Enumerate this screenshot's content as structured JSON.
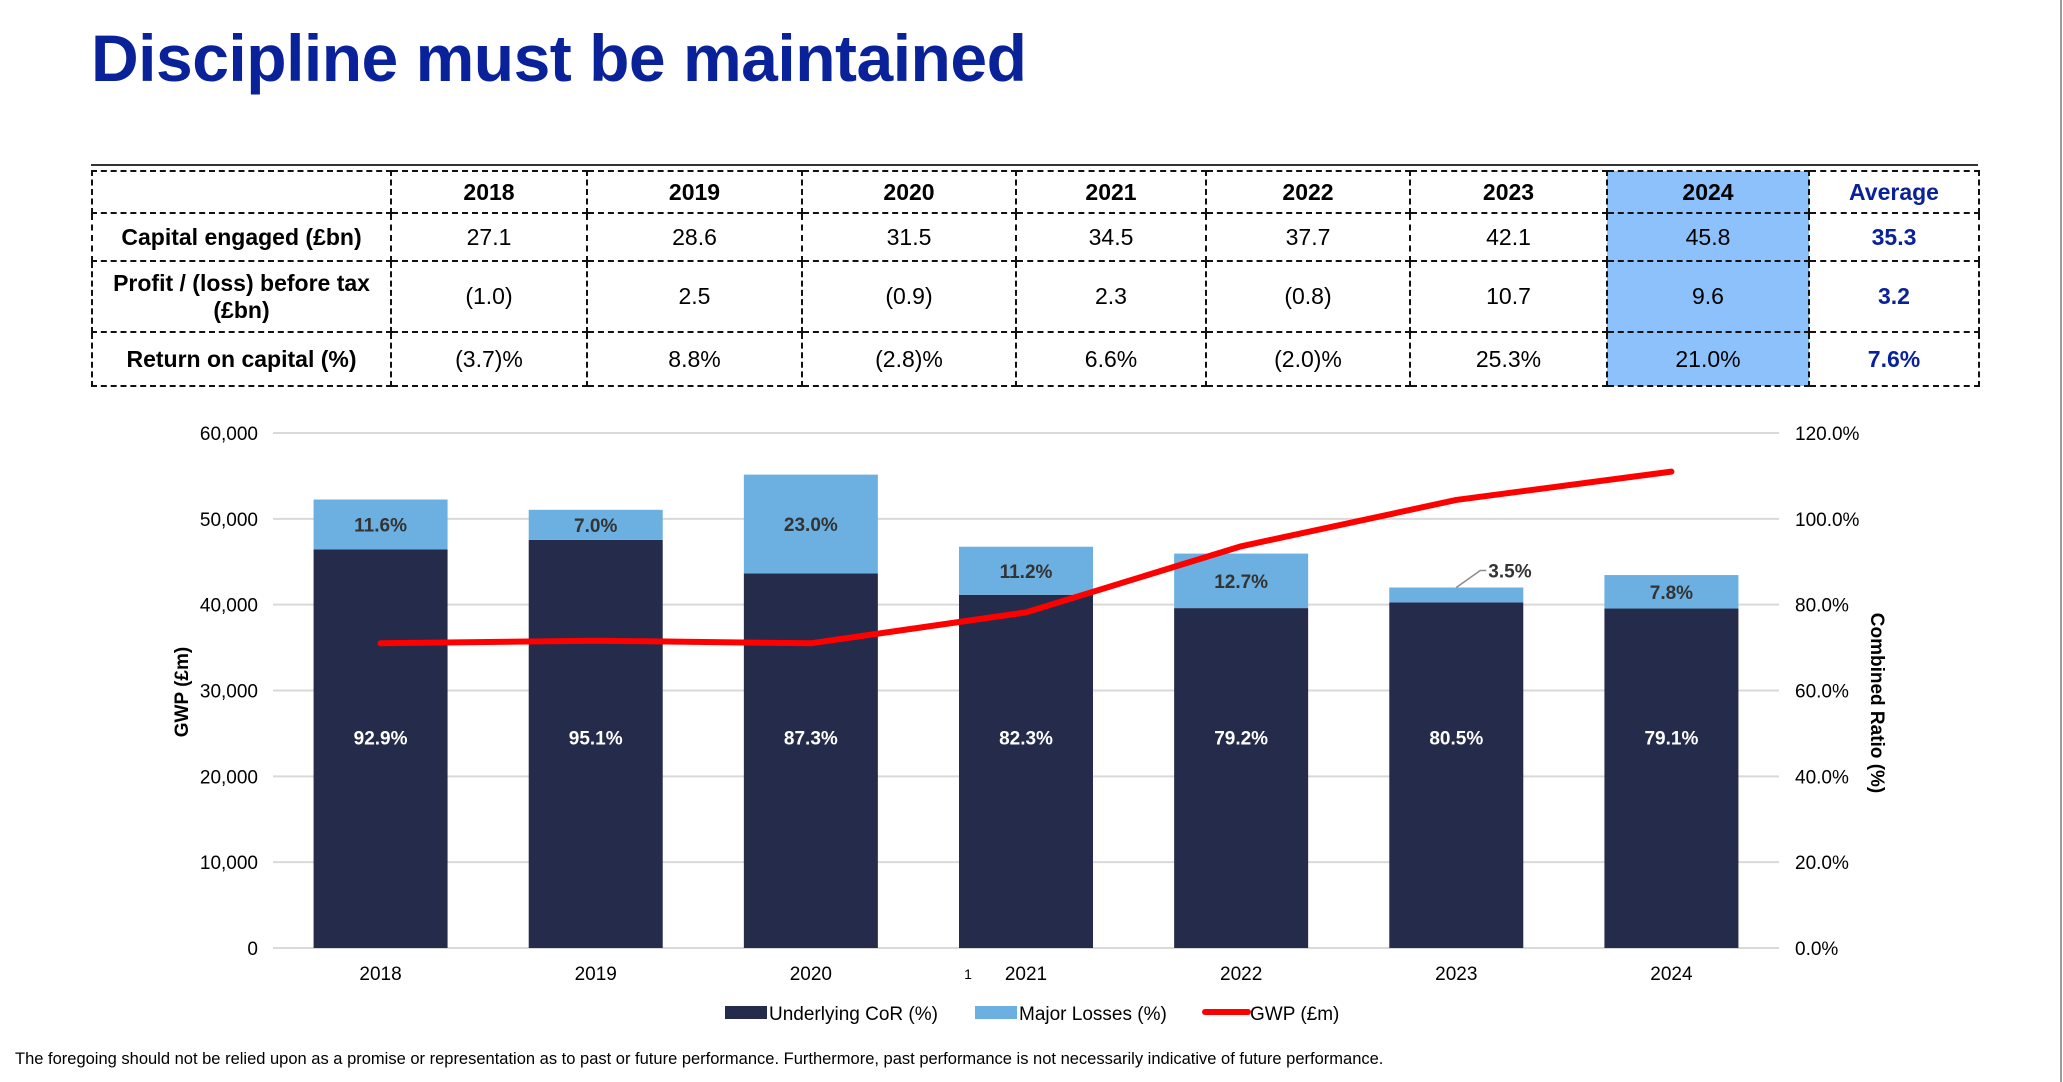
{
  "title": "Discipline must be maintained",
  "table": {
    "columns": [
      "2018",
      "2019",
      "2020",
      "2021",
      "2022",
      "2023",
      "2024",
      "Average"
    ],
    "highlight_column": "2024",
    "rows": [
      {
        "label": "Capital engaged (£bn)",
        "values": [
          "27.1",
          "28.6",
          "31.5",
          "34.5",
          "37.7",
          "42.1",
          "45.8",
          "35.3"
        ]
      },
      {
        "label": "Profit / (loss) before tax (£bn)",
        "values": [
          "(1.0)",
          "2.5",
          "(0.9)",
          "2.3",
          "(0.8)",
          "10.7",
          "9.6",
          "3.2"
        ]
      },
      {
        "label": "Return on capital (%)",
        "values": [
          "(3.7)%",
          "8.8%",
          "(2.8)%",
          "6.6%",
          "(2.0)%",
          "25.3%",
          "21.0%",
          "7.6%"
        ]
      }
    ]
  },
  "colors": {
    "title": "#0A2299",
    "underlying": "#252B4A",
    "major_losses": "#6BB0E0",
    "gwp_line": "#FF0000",
    "highlight": "#8CC1FB",
    "gridline": "#D9D9D9"
  },
  "chart_data": {
    "type": "bar",
    "subtype": "stacked bar with line on secondary axis",
    "categories": [
      "2018",
      "2019",
      "2020",
      "2021",
      "2022",
      "2023",
      "2024"
    ],
    "series": [
      {
        "name": "Underlying CoR (%)",
        "type": "bar",
        "axis": "right",
        "values": [
          92.9,
          95.1,
          87.3,
          82.3,
          79.2,
          80.5,
          79.1
        ],
        "labels": [
          "92.9%",
          "95.1%",
          "87.3%",
          "82.3%",
          "79.2%",
          "80.5%",
          "79.1%"
        ]
      },
      {
        "name": "Major Losses (%)",
        "type": "bar",
        "axis": "right",
        "values": [
          11.6,
          7.0,
          23.0,
          11.2,
          12.7,
          3.5,
          7.8
        ],
        "labels": [
          "11.6%",
          "7.0%",
          "23.0%",
          "11.2%",
          "12.7%",
          "3.5%",
          "7.8%"
        ]
      },
      {
        "name": "GWP (£m)",
        "type": "line",
        "axis": "left",
        "values": [
          35500,
          35800,
          35500,
          39100,
          46800,
          52200,
          55500
        ]
      }
    ],
    "ylabel": "GWP (£m)",
    "y2label": "Combined Ratio (%)",
    "ylim": [
      0,
      60000
    ],
    "y2lim": [
      0,
      120
    ],
    "yticks": [
      "0",
      "10,000",
      "20,000",
      "30,000",
      "40,000",
      "50,000",
      "60,000"
    ],
    "y2ticks": [
      "0.0%",
      "20.0%",
      "40.0%",
      "60.0%",
      "80.0%",
      "100.0%",
      "120.0%"
    ],
    "grid": true,
    "legend": "bottom",
    "footnote_marker": "1"
  },
  "footer": "The foregoing should not be relied upon as a promise or representation as to past or future performance.  Furthermore, past performance is not necessarily indicative of future performance."
}
